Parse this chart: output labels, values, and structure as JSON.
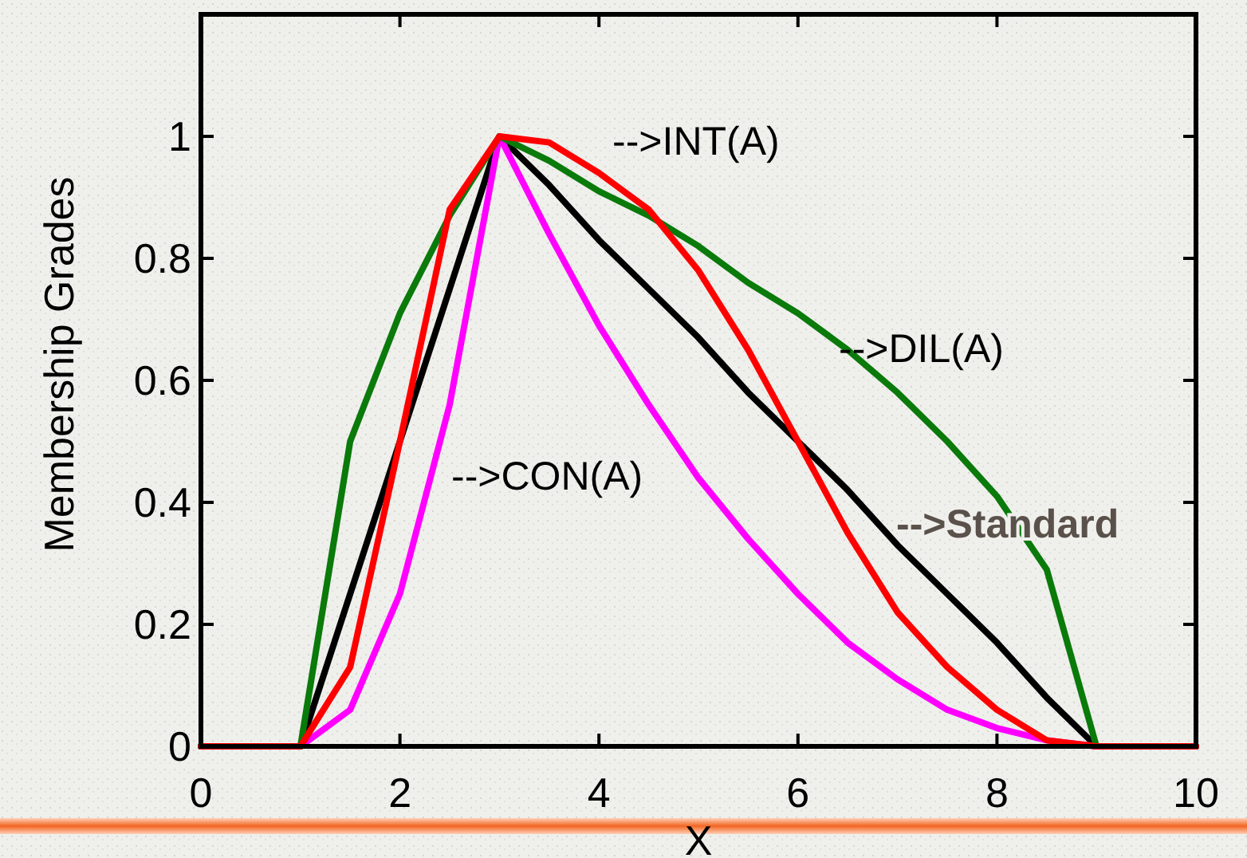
{
  "chart_data": {
    "type": "line",
    "xlabel": "X",
    "ylabel": "Membership Grades",
    "xlim": [
      0,
      10
    ],
    "ylim": [
      0,
      1.2
    ],
    "xticks": [
      0,
      2,
      4,
      6,
      8,
      10
    ],
    "yticks": [
      0,
      0.2,
      0.4,
      0.6,
      0.8,
      1
    ],
    "grid": false,
    "marker": "none",
    "line_style": "solid",
    "x": [
      0,
      1,
      1.5,
      2,
      2.5,
      3,
      3.5,
      4,
      4.5,
      5,
      5.5,
      6,
      6.5,
      7,
      7.5,
      8,
      8.5,
      9,
      10
    ],
    "series": [
      {
        "color": "#000000",
        "values": [
          0,
          0,
          0.25,
          0.5,
          0.75,
          1,
          0.92,
          0.83,
          0.75,
          0.67,
          0.58,
          0.5,
          0.42,
          0.33,
          0.25,
          0.17,
          0.08,
          0,
          0
        ]
      },
      {
        "color": "#ff00ff",
        "values": [
          0,
          0,
          0.06,
          0.25,
          0.56,
          1,
          0.84,
          0.69,
          0.56,
          0.44,
          0.34,
          0.25,
          0.17,
          0.11,
          0.06,
          0.03,
          0.01,
          0,
          0
        ]
      },
      {
        "color": "#0a7a0a",
        "values": [
          0,
          0,
          0.5,
          0.71,
          0.87,
          1,
          0.96,
          0.91,
          0.87,
          0.82,
          0.76,
          0.71,
          0.65,
          0.58,
          0.5,
          0.41,
          0.29,
          0,
          0
        ]
      },
      {
        "color": "#ff0000",
        "values": [
          0,
          0,
          0.13,
          0.5,
          0.88,
          1,
          0.99,
          0.94,
          0.88,
          0.78,
          0.65,
          0.5,
          0.35,
          0.22,
          0.13,
          0.06,
          0.01,
          0,
          0
        ]
      }
    ],
    "annotations": [
      "-->INT(A)",
      "-->DIL(A)",
      "-->CON(A)",
      "-->Standard"
    ]
  }
}
